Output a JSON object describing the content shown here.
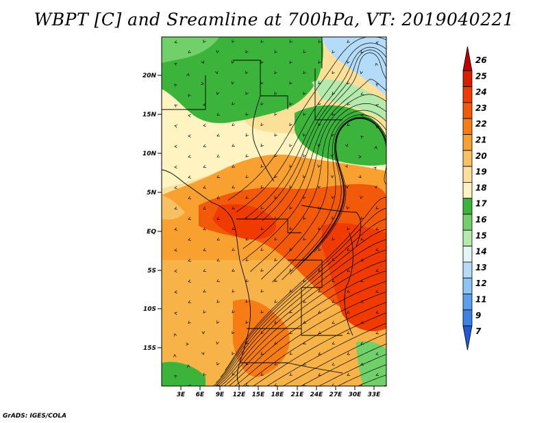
{
  "title": "WBPT [C] and Sreamline at 700hPa, VT: 2019040221",
  "credit": "GrADS: IGES/COLA",
  "map": {
    "lat_labels": [
      "20N",
      "15N",
      "10N",
      "5N",
      "EQ",
      "5S",
      "10S",
      "15S"
    ],
    "lon_labels": [
      "3E",
      "6E",
      "9E",
      "12E",
      "15E",
      "18E",
      "21E",
      "24E",
      "27E",
      "30E",
      "33E"
    ]
  },
  "colorbar": {
    "labels": [
      "26",
      "25",
      "24",
      "23",
      "22",
      "21",
      "20",
      "19",
      "18",
      "17",
      "16",
      "15",
      "14",
      "13",
      "12",
      "11",
      "9",
      "7"
    ],
    "colors": [
      "#c00000",
      "#d91e00",
      "#f03a00",
      "#f25a0a",
      "#f77c14",
      "#f8a030",
      "#f7c060",
      "#fbe09a",
      "#fff3c2",
      "#3cb43c",
      "#72d06a",
      "#b4eaac",
      "#e2f6f4",
      "#b4dcf8",
      "#8cc4f4",
      "#5aa0ec",
      "#3c82e4",
      "#1e5ad8"
    ]
  }
}
